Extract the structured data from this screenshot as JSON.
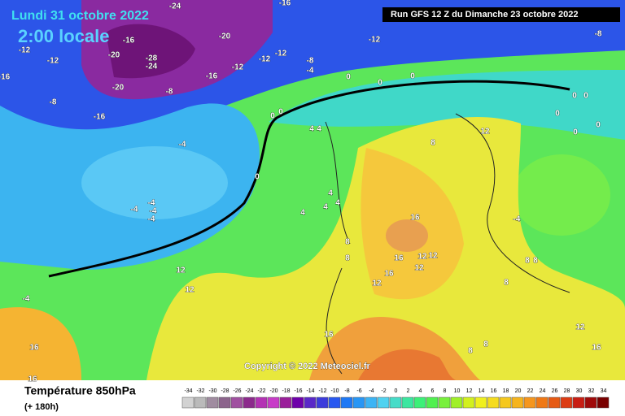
{
  "header": {
    "date": "Lundi 31 octobre 2022",
    "time": "2:00 locale",
    "run": "Run GFS 12 Z du Dimanche 23 octobre 2022"
  },
  "copyright": "Copyright © 2022 Meteociel.fr",
  "legend": {
    "title": "Température 850hPa",
    "subtitle": "(+ 180h)",
    "levels": [
      -34,
      -32,
      -30,
      -28,
      -26,
      -24,
      -22,
      -20,
      -18,
      -16,
      -14,
      -12,
      -10,
      -8,
      -6,
      -4,
      -2,
      0,
      2,
      4,
      6,
      8,
      10,
      12,
      14,
      16,
      18,
      20,
      22,
      24,
      26,
      28,
      30,
      32,
      34
    ],
    "colors": [
      "#d2d2d2",
      "#bababa",
      "#a08ca0",
      "#8c648c",
      "#a050a0",
      "#8c2a8c",
      "#b432b4",
      "#c83cc8",
      "#9a1e9a",
      "#6e00aa",
      "#5a28c8",
      "#3c3cdc",
      "#2858f0",
      "#1e78f5",
      "#2896f5",
      "#3cb4f5",
      "#50d2f0",
      "#46dcc8",
      "#3ce6a0",
      "#3cf078",
      "#50f050",
      "#78f03c",
      "#a0f028",
      "#d2f01e",
      "#f0f01e",
      "#f5dc1e",
      "#f5c81e",
      "#f5b41e",
      "#f5961e",
      "#f07814",
      "#e65a14",
      "#dc3c14",
      "#c81e14",
      "#a00a0a",
      "#780000"
    ]
  },
  "contour_labels": [
    -24,
    -16,
    -20,
    -12,
    -8,
    -12,
    -12,
    -20,
    -28,
    -24,
    -16,
    -12,
    -12,
    -12,
    -8,
    -4,
    -20,
    -8,
    -16,
    -16,
    -8,
    -16,
    0,
    0,
    0,
    0,
    0,
    0,
    0,
    0,
    0,
    0,
    4,
    4,
    12,
    8,
    -4,
    0,
    -4,
    -4,
    -4,
    -4,
    4,
    4,
    4,
    4,
    -4,
    16,
    16,
    12,
    12,
    12,
    16,
    12,
    8,
    8,
    8,
    8,
    8,
    12,
    12,
    -4,
    16,
    8,
    8,
    12,
    16,
    16,
    16
  ]
}
